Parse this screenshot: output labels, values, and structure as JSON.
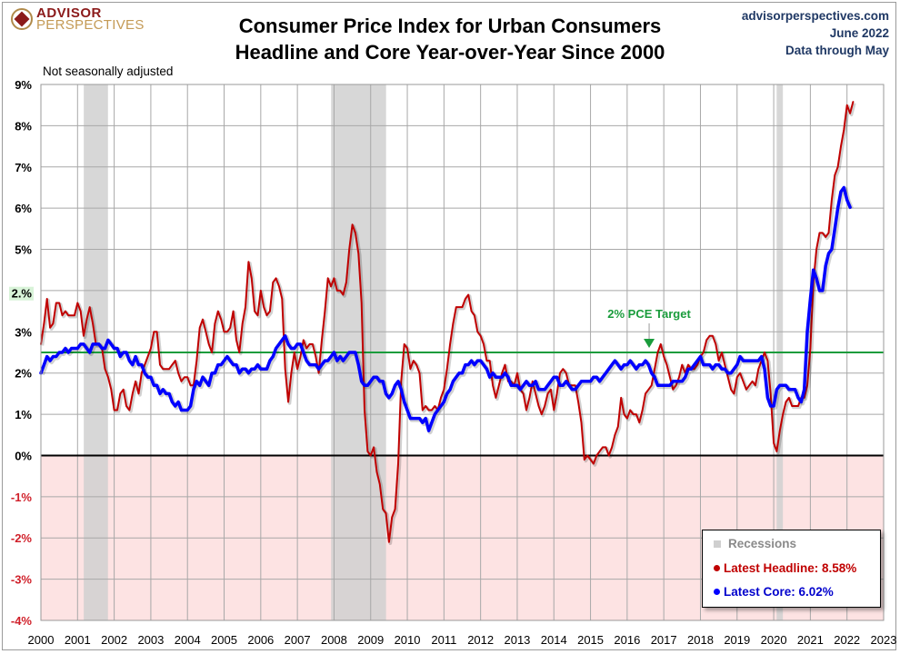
{
  "header": {
    "logo_line1": "ADVISOR",
    "logo_line2": "PERSPECTIVES",
    "title_line1": "Consumer Price Index for Urban Consumers",
    "title_line2": "Headline and Core Year-over-Year Since 2000",
    "site": "advisorperspectives.com",
    "date": "June 2022",
    "data_through": "Data through May",
    "note": "Not seasonally adjusted"
  },
  "colors": {
    "headline": "#c00000",
    "core": "#0000ff",
    "target": "#1a9c3c",
    "recession": "#d0d0d0",
    "negative_zone": "#fde3e3",
    "neg_label": "#d0202a",
    "meta_text": "#1f3864"
  },
  "legend": {
    "recessions": "Recessions",
    "headline": "Latest Headline:  8.58%",
    "core": "Latest Core:  6.02%"
  },
  "chart_data": {
    "type": "line",
    "title": "Consumer Price Index for Urban Consumers — Headline and Core Year-over-Year Since 2000",
    "xlabel": "",
    "ylabel": "",
    "xlim": [
      2000,
      2023
    ],
    "ylim": [
      -4,
      9
    ],
    "grid": true,
    "legend_position": "bottom-right",
    "x_ticks": [
      "2000",
      "2001",
      "2002",
      "2003",
      "2004",
      "2005",
      "2006",
      "2007",
      "2008",
      "2009",
      "2010",
      "2011",
      "2012",
      "2013",
      "2014",
      "2015",
      "2016",
      "2017",
      "2018",
      "2019",
      "2020",
      "2021",
      "2022",
      "2023"
    ],
    "y_ticks": [
      "9%",
      "8%",
      "7%",
      "6%",
      "5%",
      "4%",
      "3%",
      "2%",
      "1%",
      "0%",
      "-1%",
      "-2%",
      "-3%",
      "-4%"
    ],
    "y_tick_values": [
      9,
      8,
      7,
      6,
      5,
      4,
      3,
      2,
      1,
      0,
      -1,
      -2,
      -3,
      -4
    ],
    "extra_label": {
      "text": "2.%",
      "y": 3.85
    },
    "target_line": {
      "label": "2% PCE Target",
      "y": 2.5,
      "arrow_x": 2016.6
    },
    "recessions": [
      [
        2001.17,
        2001.83
      ],
      [
        2007.92,
        2009.42
      ],
      [
        2020.08,
        2020.25
      ]
    ],
    "start_year": 2000,
    "series": [
      {
        "name": "Headline CPI YoY",
        "latest": 8.58,
        "values": [
          2.7,
          3.2,
          3.8,
          3.1,
          3.2,
          3.7,
          3.7,
          3.4,
          3.5,
          3.4,
          3.4,
          3.4,
          3.7,
          3.5,
          2.9,
          3.3,
          3.6,
          3.2,
          2.7,
          2.7,
          2.6,
          2.1,
          1.9,
          1.6,
          1.1,
          1.1,
          1.5,
          1.6,
          1.2,
          1.1,
          1.5,
          1.8,
          1.5,
          2.0,
          2.2,
          2.4,
          2.6,
          3.0,
          3.0,
          2.2,
          2.1,
          2.1,
          2.1,
          2.2,
          2.3,
          2.0,
          1.8,
          1.9,
          1.9,
          1.7,
          1.7,
          2.3,
          3.1,
          3.3,
          3.0,
          2.7,
          2.5,
          3.2,
          3.5,
          3.3,
          3.0,
          3.0,
          3.1,
          3.5,
          2.8,
          2.5,
          3.2,
          3.6,
          4.7,
          4.3,
          3.5,
          3.4,
          4.0,
          3.6,
          3.4,
          3.5,
          4.2,
          4.3,
          4.1,
          3.8,
          2.1,
          1.3,
          2.0,
          2.5,
          2.1,
          2.4,
          2.8,
          2.6,
          2.7,
          2.7,
          2.4,
          2.0,
          2.8,
          3.5,
          4.3,
          4.1,
          4.3,
          4.0,
          4.0,
          3.9,
          4.2,
          5.0,
          5.6,
          5.4,
          4.9,
          3.7,
          1.1,
          0.1,
          0.0,
          0.2,
          -0.4,
          -0.7,
          -1.3,
          -1.4,
          -2.1,
          -1.5,
          -1.3,
          -0.2,
          1.8,
          2.7,
          2.6,
          2.1,
          2.3,
          2.2,
          2.0,
          1.1,
          1.2,
          1.1,
          1.1,
          1.2,
          1.1,
          1.4,
          1.6,
          2.1,
          2.7,
          3.2,
          3.6,
          3.6,
          3.6,
          3.8,
          3.9,
          3.5,
          3.4,
          3.0,
          2.9,
          2.7,
          2.3,
          2.3,
          1.7,
          1.4,
          1.7,
          2.0,
          2.2,
          1.8,
          1.8,
          1.7,
          2.0,
          1.6,
          1.5,
          1.1,
          1.4,
          1.8,
          1.5,
          1.2,
          1.0,
          1.2,
          1.5,
          1.6,
          1.1,
          1.5,
          2.0,
          2.1,
          2.0,
          1.7,
          1.7,
          1.7,
          1.3,
          0.8,
          -0.1,
          0.0,
          -0.1,
          -0.2,
          0.0,
          0.1,
          0.2,
          0.2,
          0.0,
          0.2,
          0.5,
          0.7,
          1.4,
          1.0,
          0.9,
          1.1,
          1.0,
          1.0,
          0.8,
          1.1,
          1.5,
          1.6,
          1.7,
          2.1,
          2.5,
          2.7,
          2.4,
          2.2,
          1.9,
          1.6,
          1.7,
          1.9,
          2.2,
          2.0,
          2.2,
          2.1,
          2.1,
          2.2,
          2.4,
          2.5,
          2.8,
          2.9,
          2.9,
          2.7,
          2.3,
          2.5,
          2.2,
          1.9,
          1.6,
          1.5,
          1.9,
          2.0,
          1.8,
          1.6,
          1.7,
          1.8,
          1.7,
          2.1,
          2.3,
          2.5,
          2.3,
          1.5,
          0.3,
          0.1,
          0.6,
          1.0,
          1.3,
          1.4,
          1.2,
          1.2,
          1.2,
          1.4,
          1.4,
          1.7,
          2.6,
          4.2,
          5.0,
          5.4,
          5.4,
          5.3,
          5.4,
          6.2,
          6.8,
          7.0,
          7.5,
          7.9,
          8.5,
          8.3,
          8.58
        ]
      },
      {
        "name": "Core CPI YoY",
        "latest": 6.02,
        "values": [
          2.0,
          2.2,
          2.4,
          2.3,
          2.4,
          2.4,
          2.5,
          2.5,
          2.6,
          2.5,
          2.6,
          2.6,
          2.6,
          2.7,
          2.7,
          2.6,
          2.5,
          2.7,
          2.7,
          2.7,
          2.6,
          2.6,
          2.8,
          2.7,
          2.6,
          2.6,
          2.4,
          2.5,
          2.5,
          2.3,
          2.2,
          2.4,
          2.2,
          2.2,
          2.0,
          1.9,
          1.9,
          1.7,
          1.7,
          1.5,
          1.6,
          1.5,
          1.5,
          1.3,
          1.2,
          1.3,
          1.1,
          1.1,
          1.1,
          1.2,
          1.6,
          1.8,
          1.7,
          1.9,
          1.8,
          1.7,
          2.0,
          2.0,
          2.2,
          2.2,
          2.3,
          2.4,
          2.3,
          2.2,
          2.2,
          2.0,
          2.1,
          2.1,
          2.0,
          2.1,
          2.1,
          2.2,
          2.1,
          2.1,
          2.1,
          2.3,
          2.4,
          2.6,
          2.7,
          2.8,
          2.9,
          2.7,
          2.6,
          2.6,
          2.7,
          2.7,
          2.5,
          2.3,
          2.2,
          2.2,
          2.2,
          2.1,
          2.2,
          2.3,
          2.3,
          2.4,
          2.5,
          2.3,
          2.4,
          2.3,
          2.4,
          2.5,
          2.5,
          2.5,
          2.2,
          1.8,
          1.7,
          1.7,
          1.8,
          1.9,
          1.9,
          1.8,
          1.8,
          1.5,
          1.4,
          1.5,
          1.7,
          1.8,
          1.6,
          1.3,
          1.1,
          0.9,
          0.9,
          0.9,
          0.9,
          0.8,
          0.9,
          0.6,
          0.8,
          1.0,
          1.1,
          1.2,
          1.3,
          1.5,
          1.6,
          1.8,
          1.9,
          2.0,
          2.0,
          2.2,
          2.2,
          2.3,
          2.2,
          2.3,
          2.3,
          2.2,
          2.1,
          1.9,
          2.0,
          1.9,
          1.9,
          1.9,
          2.0,
          1.9,
          1.7,
          1.7,
          1.7,
          1.6,
          1.7,
          1.8,
          1.7,
          1.7,
          1.8,
          1.6,
          1.6,
          1.6,
          1.7,
          1.8,
          1.9,
          1.9,
          1.7,
          1.7,
          1.8,
          1.7,
          1.6,
          1.6,
          1.7,
          1.8,
          1.8,
          1.8,
          1.8,
          1.9,
          1.9,
          1.8,
          1.9,
          2.0,
          2.1,
          2.2,
          2.3,
          2.2,
          2.1,
          2.2,
          2.2,
          2.3,
          2.2,
          2.1,
          2.2,
          2.2,
          2.3,
          2.2,
          2.0,
          1.9,
          1.7,
          1.7,
          1.7,
          1.7,
          1.7,
          1.8,
          1.8,
          1.8,
          1.8,
          1.9,
          2.1,
          2.1,
          2.2,
          2.3,
          2.4,
          2.2,
          2.2,
          2.2,
          2.1,
          2.2,
          2.2,
          2.1,
          2.1,
          2.0,
          2.0,
          2.1,
          2.2,
          2.4,
          2.3,
          2.3,
          2.3,
          2.3,
          2.3,
          2.3,
          2.4,
          2.1,
          1.4,
          1.2,
          1.2,
          1.6,
          1.7,
          1.7,
          1.7,
          1.6,
          1.6,
          1.6,
          1.4,
          1.3,
          1.6,
          3.0,
          3.8,
          4.5,
          4.3,
          4.0,
          4.0,
          4.6,
          4.9,
          5.0,
          5.5,
          6.0,
          6.4,
          6.5,
          6.2,
          6.02
        ]
      }
    ]
  }
}
